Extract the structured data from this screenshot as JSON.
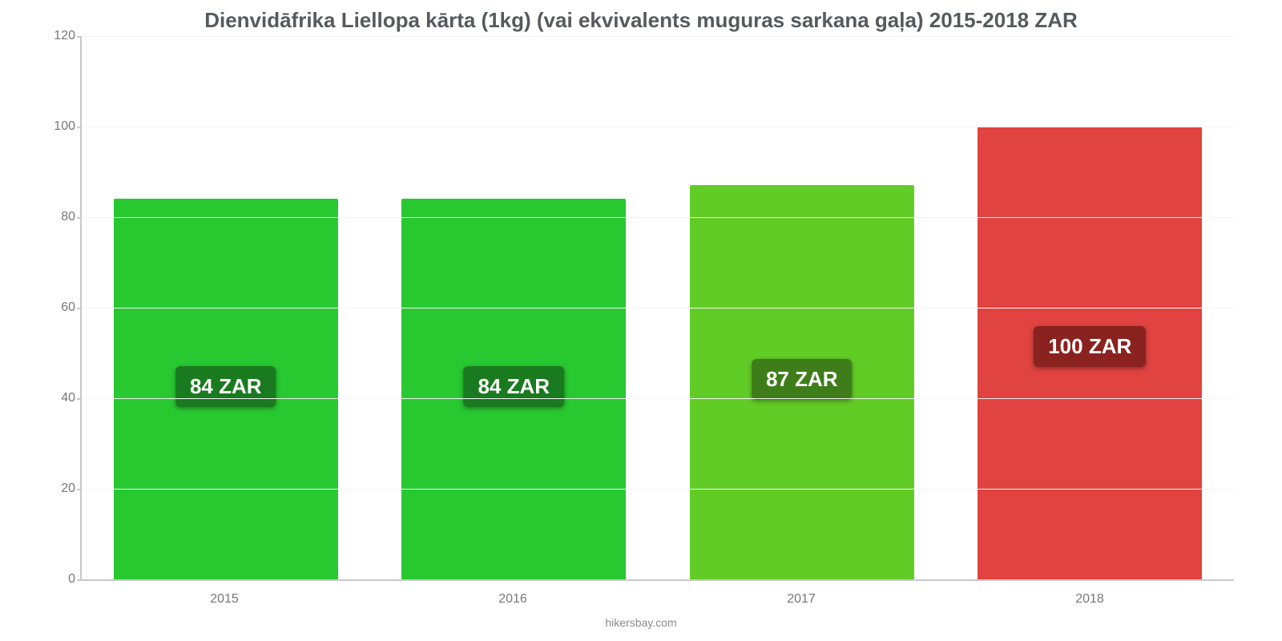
{
  "chart": {
    "type": "bar",
    "title": "Dienvidāfrika Liellopa kārta (1kg) (vai ekvivalents muguras sarkana gaļa) 2015-2018 ZAR",
    "title_fontsize": 26,
    "title_color": "#555a5e",
    "source": "hikersbay.com",
    "background_color": "#ffffff",
    "grid_color": "#f3f3f3",
    "axis_color": "#c9c9c9",
    "ylim": [
      0,
      120
    ],
    "ytick_step": 20,
    "yticks": [
      0,
      20,
      40,
      60,
      80,
      100,
      120
    ],
    "categories": [
      "2015",
      "2016",
      "2017",
      "2018"
    ],
    "values": [
      84,
      84,
      87,
      100
    ],
    "value_labels": [
      "84 ZAR",
      "84 ZAR",
      "87 ZAR",
      "100 ZAR"
    ],
    "bar_colors": [
      "#28c831",
      "#28c831",
      "#62cc27",
      "#e04340"
    ],
    "badge_colors": [
      "#1a7a1f",
      "#1a7a1f",
      "#3f7d1a",
      "#8a2220"
    ],
    "badge_text_color": "#ffffff",
    "badge_fontsize": 26,
    "label_fontsize": 16,
    "label_color": "#777777",
    "bar_width": 0.78,
    "badge_top_percent": 44
  }
}
